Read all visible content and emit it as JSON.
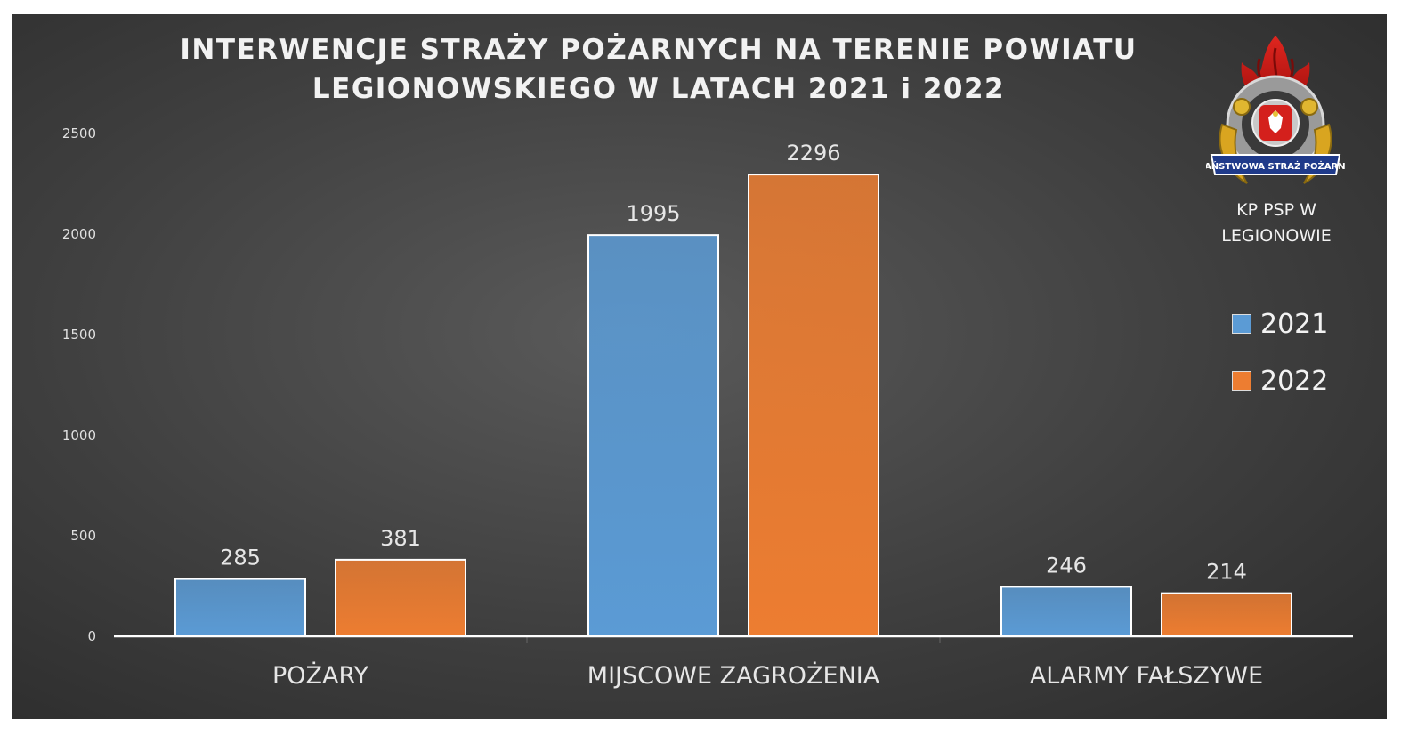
{
  "chart_title_line1": "INTERWENCJE STRAŻY POŻARNYCH NA TERENIE POWIATU",
  "chart_title_line2": "LEGIONOWSKIEGO W LATACH 2021 i 2022",
  "org_line1": "KP PSP W",
  "org_line2": "LEGIONOWIE",
  "logo_text": "PAŃSTWOWA STRAŻ POŻARNA",
  "colors": {
    "series_2021": "#5b9bd5",
    "series_2022": "#ed7d31",
    "background": "#404040"
  },
  "chart_data": {
    "type": "bar",
    "title": "INTERWENCJE STRAŻY POŻARNYCH NA TERENIE POWIATU LEGIONOWSKIEGO W LATACH 2021 i 2022",
    "categories": [
      "POŻARY",
      "MIJSCOWE ZAGROŻENIA",
      "ALARMY FAŁSZYWE"
    ],
    "series": [
      {
        "name": "2021",
        "values": [
          285,
          1995,
          246
        ]
      },
      {
        "name": "2022",
        "values": [
          381,
          2296,
          214
        ]
      }
    ],
    "ylim": [
      0,
      2500
    ],
    "yticks": [
      0,
      500,
      1000,
      1500,
      2000,
      2500
    ],
    "grid": "vertical category separators",
    "legend": "right"
  }
}
